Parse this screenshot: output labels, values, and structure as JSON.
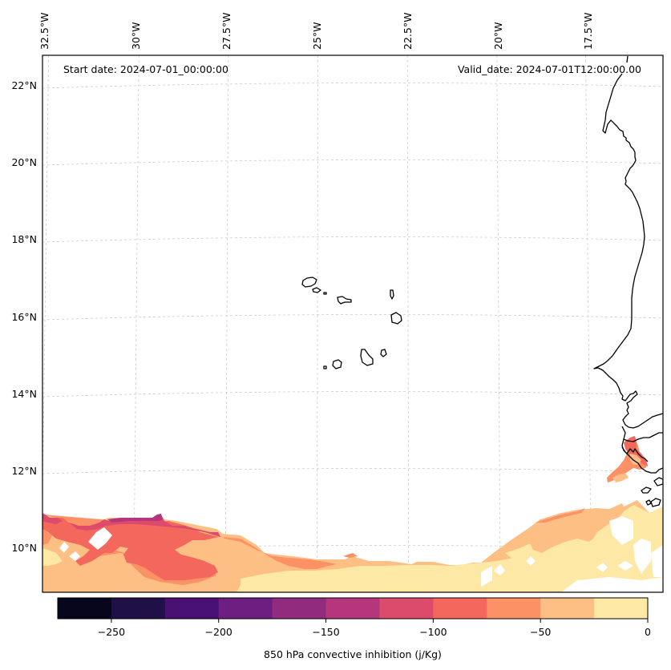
{
  "figure": {
    "annotations": {
      "start_date": "Start date: 2024-07-01_00:00:00",
      "valid_date": "Valid_date: 2024-07-01T12:00:00.00"
    }
  },
  "chart_data": {
    "type": "heatmap",
    "subtype": "filled-contour map",
    "title": "",
    "variable": "850 hPa convective inhibition",
    "units": "j/Kg",
    "colorbar": {
      "label": "850 hPa convective inhibition (j/Kg)",
      "orientation": "horizontal",
      "placement": "bottom",
      "levels": [
        -275,
        -250,
        -225,
        -200,
        -175,
        -150,
        -125,
        -100,
        -75,
        -50,
        -25,
        0
      ],
      "colors": [
        "#08061d",
        "#1f1147",
        "#4a1175",
        "#6e1e81",
        "#902b7e",
        "#b5367a",
        "#dc4b6b",
        "#f3675c",
        "#fb9165",
        "#fdbf84",
        "#fde8a6"
      ],
      "ticks": [
        -250,
        -200,
        -150,
        -100,
        -50,
        0
      ],
      "tick_labels": [
        "−250",
        "−200",
        "−150",
        "−100",
        "−50",
        "0"
      ]
    },
    "lon_axis": {
      "position": "top",
      "ticks": [
        -32.5,
        -30,
        -27.5,
        -25,
        -22.5,
        -20,
        -17.5
      ],
      "tick_labels": [
        "32.5°W",
        "30°W",
        "27.5°W",
        "25°W",
        "22.5°W",
        "20°W",
        "17.5°W"
      ]
    },
    "lat_axis": {
      "position": "left",
      "ticks": [
        22,
        20,
        18,
        16,
        14,
        12,
        10
      ],
      "tick_labels": [
        "22°N",
        "20°N",
        "18°N",
        "16°N",
        "14°N",
        "12°N",
        "10°N"
      ]
    },
    "extent": {
      "lon": [
        -32.6,
        -15.6
      ],
      "lat": [
        8.9,
        22.8
      ]
    },
    "grid": true,
    "features": [
      "coastlines",
      "Cape Verde islands",
      "West African coast (Mauritania, Senegal, Gambia, Guinea-Bissau)"
    ],
    "regions": [
      {
        "description": "Southwest band near 9.5-11N, 32.5-26W",
        "values_range": [
          -150,
          -25
        ],
        "dominant": -87.5
      },
      {
        "description": "Central-south band 9-10N, 26-22W",
        "values_range": [
          -75,
          0
        ],
        "dominant": -37.5
      },
      {
        "description": "Southeast near 9-11N, 21-15.6W",
        "values_range": [
          -75,
          0
        ],
        "dominant": -12.5
      },
      {
        "description": "Gambia / Senegal coast patch near 12-12.8N",
        "values_range": [
          -100,
          -25
        ],
        "dominant": -62.5
      }
    ]
  }
}
